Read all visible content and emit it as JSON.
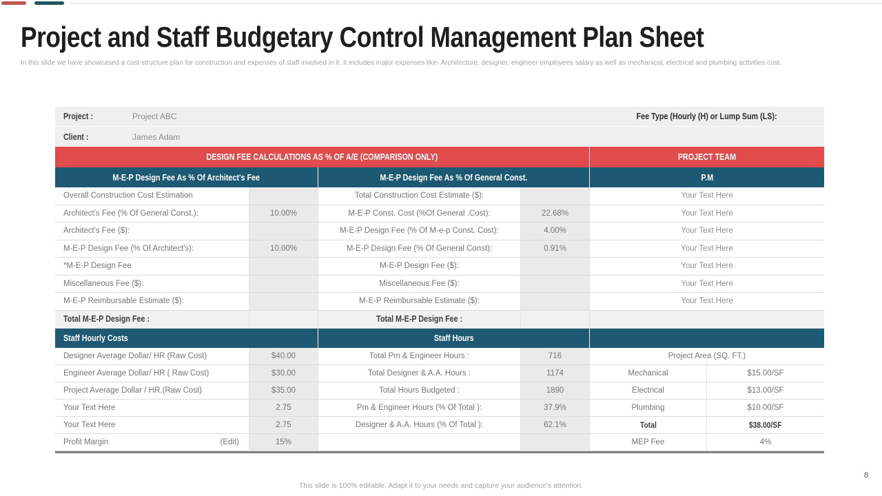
{
  "colors": {
    "accent_bar_red": "#C0564E",
    "accent_bar_teal": "#1F5560",
    "table_header_red": "#E14B4B",
    "table_header_blue": "#1D5972",
    "value_cell_bg": "#EAEAEA",
    "info_bg": "#EFEFEF"
  },
  "header": {
    "title": "Project and Staff Budgetary Control Management Plan Sheet",
    "subtitle": "In this slide we have showcased a cost structure plan for construction and expenses of staff involved in it. It includes major expenses like- Architecture, designer, engineer employees salary as well as mechanical, electrical and plumbing activities cost."
  },
  "info": {
    "project_label": "Project :",
    "project_value": "Project ABC",
    "client_label": "Client :",
    "client_value": "James Adam",
    "fee_type_label": "Fee Type (Hourly (H) or Lump Sum (LS):"
  },
  "sections": {
    "design_fee": {
      "left_header": "DESIGN FEE CALCULATIONS AS % OF A/E (COMPARISON ONLY)",
      "right_header": "PROJECT TEAM",
      "col1_header": "M-E-P Design Fee As % Of Architect's Fee",
      "col2_header": "M-E-P Design Fee As % Of General Const.",
      "col3_header": "P.M",
      "rows": [
        {
          "c1": "Overall Construction Cost Estimation",
          "v1": "",
          "c2": "Total Construction Cost Estimate ($):",
          "v2": "",
          "c3": "Your Text Here"
        },
        {
          "c1": "Architect's Fee (% Of General Const.):",
          "v1": "10.00%",
          "c2": "M-E-P Const. Cost (%Of General .Cost):",
          "v2": "22.68%",
          "c3": "Your Text Here"
        },
        {
          "c1": "Architect's Fee ($):",
          "v1": "",
          "c2": "M-E-P Design Fee (% Of  M-e-p Const. Cost):",
          "v2": "4.00%",
          "c3": "Your Text Here"
        },
        {
          "c1": "M-E-P Design Fee (% Of Architect's):",
          "v1": "10.00%",
          "c2": "M-E-P Design Fee (% Of General Const):",
          "v2": "0.91%",
          "c3": "Your Text Here"
        },
        {
          "c1": "*M-E-P Design Fee",
          "v1": "",
          "c2": "M-E-P Design Fee ($):",
          "v2": "",
          "c3": "Your Text Here"
        },
        {
          "c1": "Miscellaneous Fee ($):",
          "v1": "",
          "c2": "Miscellaneous Fee ($):",
          "v2": "",
          "c3": "Your Text Here"
        },
        {
          "c1": "M-E-P Reimbursable Estimate ($):",
          "v1": "",
          "c2": "M-E-P Reimbursable Estimate ($):",
          "v2": "",
          "c3": "Your Text Here"
        }
      ],
      "total_row": {
        "c1": "Total M-E-P Design Fee :",
        "v1": "",
        "c2": "Total M-E-P Design Fee :",
        "v2": "",
        "c3": ""
      }
    },
    "staff": {
      "col1_header": "Staff Hourly Costs",
      "col2_header": "Staff Hours",
      "area_header": "Project Area (SQ. FT.)",
      "rows": [
        {
          "c1": "Designer Average Dollar/ HR (Raw Cost)",
          "v1": "$40.00",
          "c2": "Total Pm & Engineer Hours :",
          "v2": "716"
        },
        {
          "c1": "Engineer Average Dollar/ HR ( Raw Cost)",
          "v1": "$30.00",
          "c2": "Total Designer & A.A.  Hours :",
          "v2": "1174"
        },
        {
          "c1": "Project Average  Dollar / HR.(Raw Cost)",
          "v1": "$35.00",
          "c2": "Total Hours Budgeted :",
          "v2": "1890"
        },
        {
          "c1": "Your Text Here",
          "v1": "2.75",
          "c2": "Pm & Engineer Hours (% Of Total ):",
          "v2": "37.9%"
        },
        {
          "c1": "Your Text Here",
          "v1": "2.75",
          "c2": "Designer & A.A.  Hours (% Of Total ):",
          "v2": "62.1%"
        },
        {
          "c1": "Profit Margin",
          "c1_extra": "(Edit)",
          "v1": "15%",
          "c2": "",
          "v2": ""
        }
      ],
      "area_rows": [
        {
          "label": "Mechanical",
          "value": "$15.00/SF"
        },
        {
          "label": "Electrical",
          "value": "$13.00/SF"
        },
        {
          "label": "Plumbing",
          "value": "$10.00/SF"
        },
        {
          "label": "Total",
          "value": "$38.00/SF"
        },
        {
          "label": "MEP Fee",
          "value": "4%"
        }
      ]
    }
  },
  "footer": {
    "note": "This slide is 100% editable.  Adapt it to your needs and capture your audience's attention.",
    "page_number": "8"
  }
}
